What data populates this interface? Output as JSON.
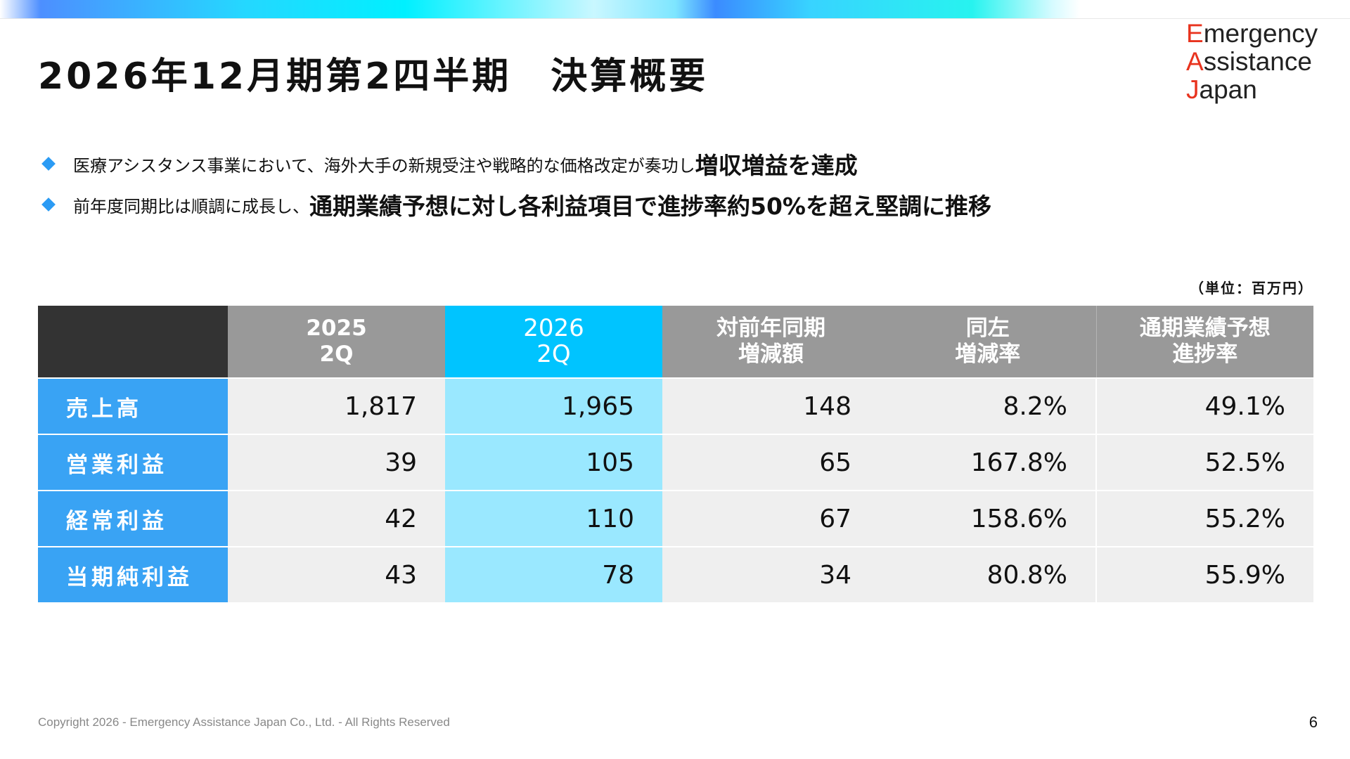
{
  "slide": {
    "title": "2026年12月期第2四半期　決算概要",
    "logo_lines": [
      {
        "first": "E",
        "rest": "mergency"
      },
      {
        "first": "A",
        "rest": "ssistance"
      },
      {
        "first": "J",
        "rest": "apan"
      }
    ]
  },
  "bullets": [
    {
      "normal": "医療アシスタンス事業において、海外大手の新規受注や戦略的な価格改定が奏功し",
      "strong": "増収増益を達成"
    },
    {
      "normal": "前年度同期比は順調に成長し、",
      "strong": "通期業績予想に対し各利益項目で進捗率約50%を超え堅調に推移"
    }
  ],
  "table": {
    "unit": "（単位：百万円）",
    "headers": [
      {
        "line1": "2025",
        "line2": "2Q"
      },
      {
        "line1": "2026",
        "line2": "2Q"
      },
      {
        "line1": "対前年同期",
        "line2": "増減額"
      },
      {
        "line1": "同左",
        "line2": "増減率"
      },
      {
        "line1": "通期業績予想",
        "line2": "進捗率"
      }
    ],
    "rows": [
      {
        "label": "売上高",
        "cells": [
          "1,817",
          "1,965",
          "148",
          "8.2%",
          "49.1%"
        ]
      },
      {
        "label": "営業利益",
        "cells": [
          "39",
          "105",
          "65",
          "167.8%",
          "52.5%"
        ]
      },
      {
        "label": "経常利益",
        "cells": [
          "42",
          "110",
          "67",
          "158.6%",
          "55.2%"
        ]
      },
      {
        "label": "当期純利益",
        "cells": [
          "43",
          "78",
          "34",
          "80.8%",
          "55.9%"
        ]
      }
    ]
  },
  "footer": {
    "copyright": "Copyright 2026 - Emergency Assistance Japan Co., Ltd. - All Rights Reserved",
    "page_number": "6"
  },
  "colors": {
    "label_blue": "#39a3f4",
    "highlight_cyan": "#00c4ff",
    "highlight_light": "#9ae8ff",
    "header_gray": "#999999",
    "logo_red": "#e8331e"
  }
}
